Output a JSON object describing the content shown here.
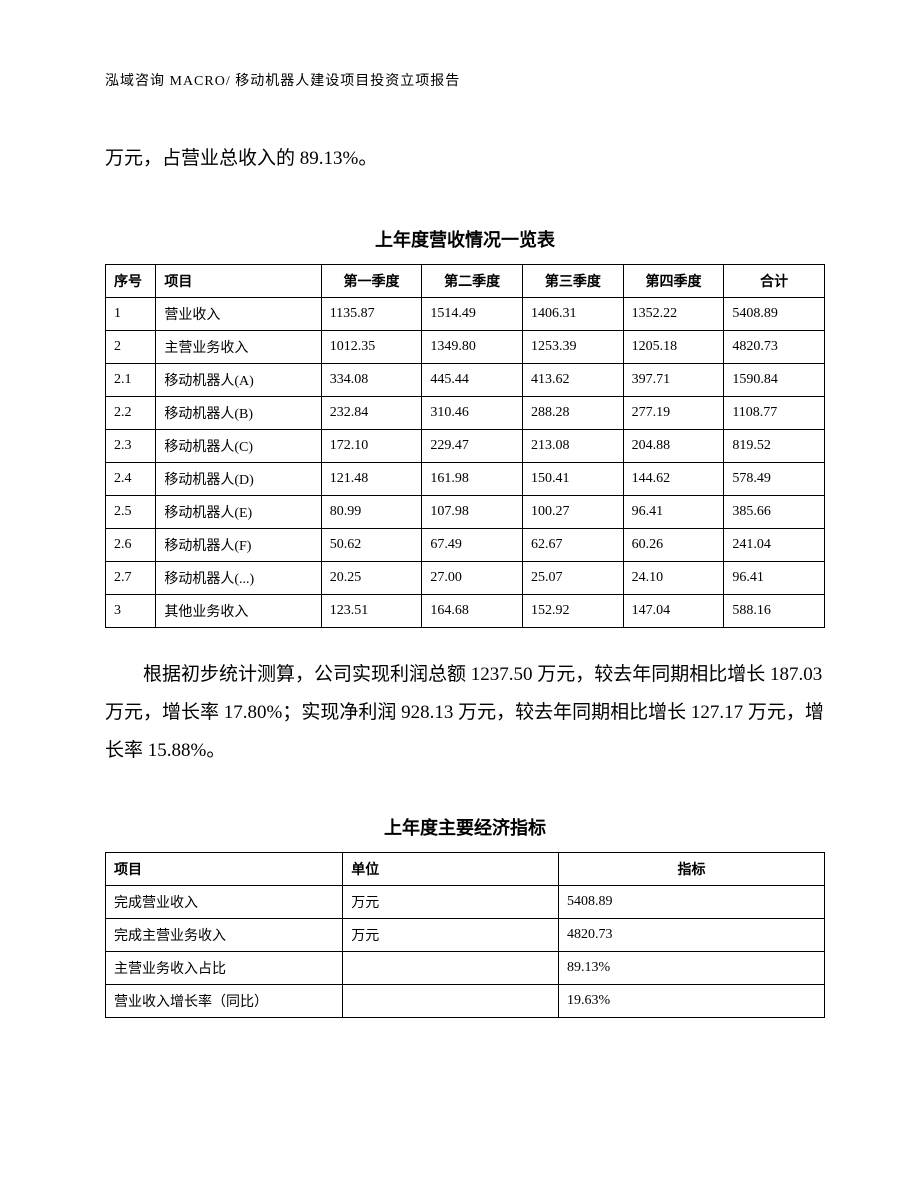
{
  "header": "泓域咨询 MACRO/ 移动机器人建设项目投资立项报告",
  "intro": "万元，占营业总收入的 89.13%。",
  "table1": {
    "title": "上年度营收情况一览表",
    "columns": [
      "序号",
      "项目",
      "第一季度",
      "第二季度",
      "第三季度",
      "第四季度",
      "合计"
    ],
    "rows": [
      [
        "1",
        "营业收入",
        "1135.87",
        "1514.49",
        "1406.31",
        "1352.22",
        "5408.89"
      ],
      [
        "2",
        "主营业务收入",
        "1012.35",
        "1349.80",
        "1253.39",
        "1205.18",
        "4820.73"
      ],
      [
        "2.1",
        "移动机器人(A)",
        "334.08",
        "445.44",
        "413.62",
        "397.71",
        "1590.84"
      ],
      [
        "2.2",
        "移动机器人(B)",
        "232.84",
        "310.46",
        "288.28",
        "277.19",
        "1108.77"
      ],
      [
        "2.3",
        "移动机器人(C)",
        "172.10",
        "229.47",
        "213.08",
        "204.88",
        "819.52"
      ],
      [
        "2.4",
        "移动机器人(D)",
        "121.48",
        "161.98",
        "150.41",
        "144.62",
        "578.49"
      ],
      [
        "2.5",
        "移动机器人(E)",
        "80.99",
        "107.98",
        "100.27",
        "96.41",
        "385.66"
      ],
      [
        "2.6",
        "移动机器人(F)",
        "50.62",
        "67.49",
        "62.67",
        "60.26",
        "241.04"
      ],
      [
        "2.7",
        "移动机器人(...)",
        "20.25",
        "27.00",
        "25.07",
        "24.10",
        "96.41"
      ],
      [
        "3",
        "其他业务收入",
        "123.51",
        "164.68",
        "152.92",
        "147.04",
        "588.16"
      ]
    ]
  },
  "paragraph": "根据初步统计测算，公司实现利润总额 1237.50 万元，较去年同期相比增长 187.03 万元，增长率 17.80%；实现净利润 928.13 万元，较去年同期相比增长 127.17 万元，增长率 15.88%。",
  "table2": {
    "title": "上年度主要经济指标",
    "columns": [
      "项目",
      "单位",
      "指标"
    ],
    "rows": [
      [
        "完成营业收入",
        "万元",
        "5408.89"
      ],
      [
        "完成主营业务收入",
        "万元",
        "4820.73"
      ],
      [
        "主营业务收入占比",
        "",
        "89.13%"
      ],
      [
        "营业收入增长率（同比）",
        "",
        "19.63%"
      ]
    ]
  }
}
